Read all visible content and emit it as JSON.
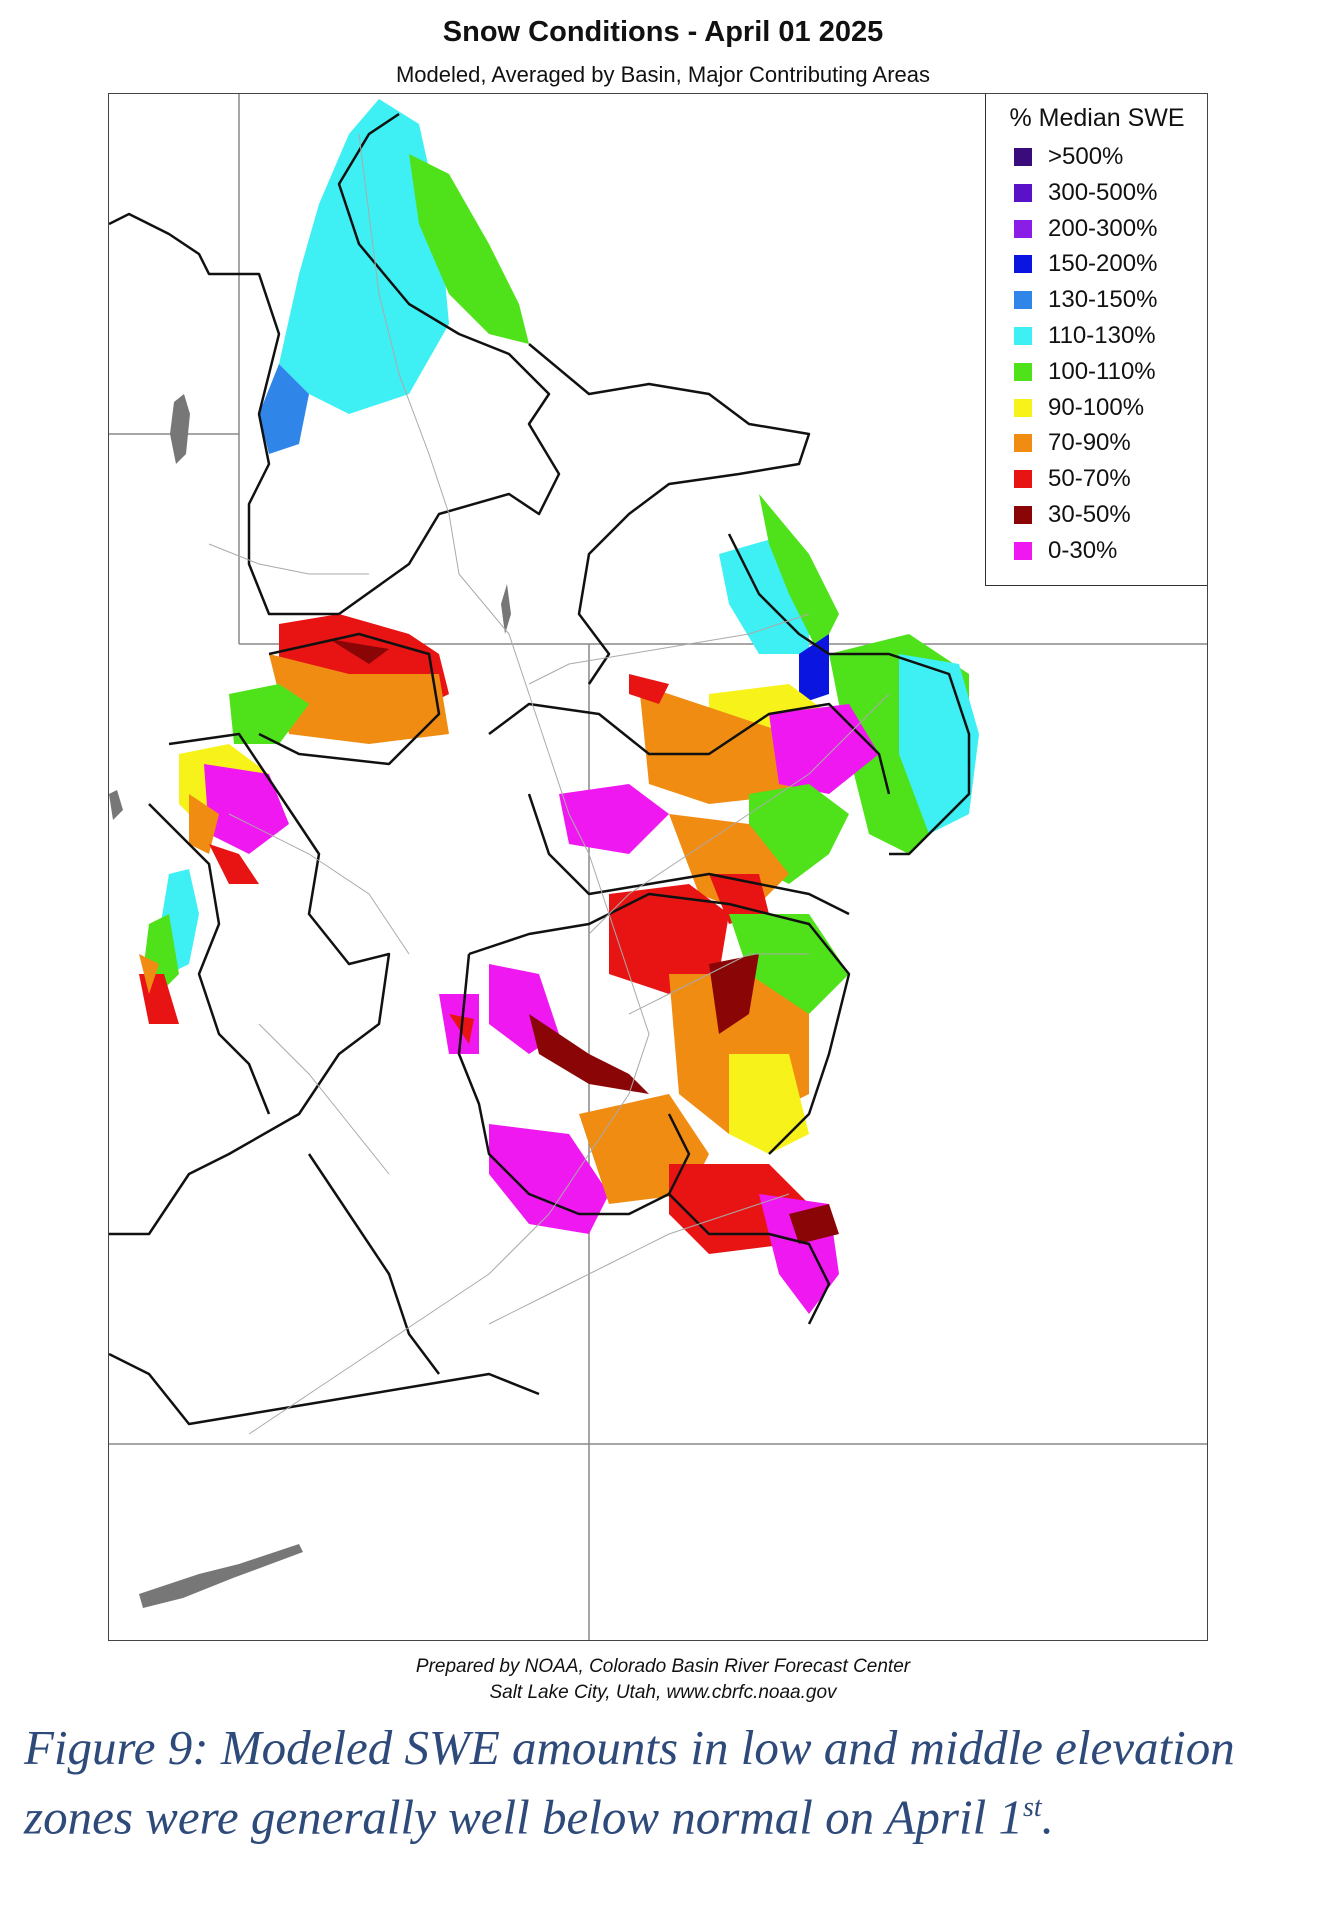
{
  "map": {
    "title": "Snow Conditions - April 01 2025",
    "subtitle": "Modeled, Averaged by Basin, Major Contributing Areas",
    "legend": {
      "title": "% Median SWE",
      "items": [
        {
          "label": ">500%",
          "color": "#3a0b7a"
        },
        {
          "label": "300-500%",
          "color": "#5a12c8"
        },
        {
          "label": "200-300%",
          "color": "#8a1ee6"
        },
        {
          "label": "150-200%",
          "color": "#0a16e0"
        },
        {
          "label": "130-150%",
          "color": "#2f86e8"
        },
        {
          "label": "110-130%",
          "color": "#3ef0f4"
        },
        {
          "label": "100-110%",
          "color": "#4fe21a"
        },
        {
          "label": "90-100%",
          "color": "#f6f21a"
        },
        {
          "label": "70-90%",
          "color": "#f08c12"
        },
        {
          "label": "50-70%",
          "color": "#e81414"
        },
        {
          "label": "30-50%",
          "color": "#8a0606"
        },
        {
          "label": "0-30%",
          "color": "#f018f0"
        }
      ]
    },
    "credits": {
      "line1": "Prepared by NOAA, Colorado Basin River Forecast Center",
      "line2": "Salt Lake City, Utah, www.cbrfc.noaa.gov"
    }
  },
  "caption": {
    "text": "Figure 9: Modeled SWE amounts in low and middle elevation zones were generally well below normal on April 1",
    "superscript": "st",
    "end": "."
  }
}
